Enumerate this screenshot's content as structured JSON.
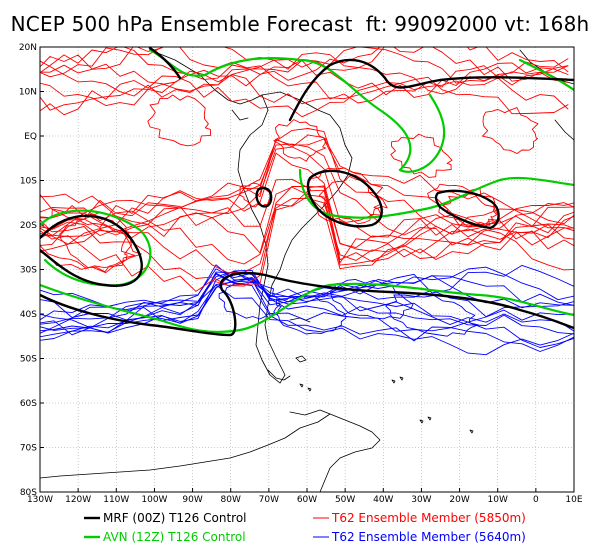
{
  "title": "NCEP 500 hPa Ensemble Forecast  ft: 99092000 vt: 168h",
  "lat_labels": [
    "20N",
    "10N",
    "EQ",
    "10S",
    "20S",
    "30S",
    "40S",
    "50S",
    "60S",
    "70S",
    "80S"
  ],
  "lon_labels": [
    "130W",
    "120W",
    "110W",
    "100W",
    "90W",
    "80W",
    "70W",
    "60W",
    "50W",
    "40W",
    "30W",
    "20W",
    "10W",
    "0",
    "10E"
  ],
  "legend": [
    {
      "label": "MRF (00Z) T126 Control",
      "color": "#000000"
    },
    {
      "label": "T62 Ensemble Member (5850m)",
      "color": "#ff0000"
    },
    {
      "label": "AVN (12Z) T126 Control",
      "color": "#00cc00"
    },
    {
      "label": "T62 Ensemble Member (5640m)",
      "color": "#0000ff"
    }
  ],
  "colors": {
    "mrf": "#000000",
    "avn": "#00cc00",
    "member_5850": "#ff0000",
    "member_5640": "#0000ff",
    "grid": "#999999"
  }
}
